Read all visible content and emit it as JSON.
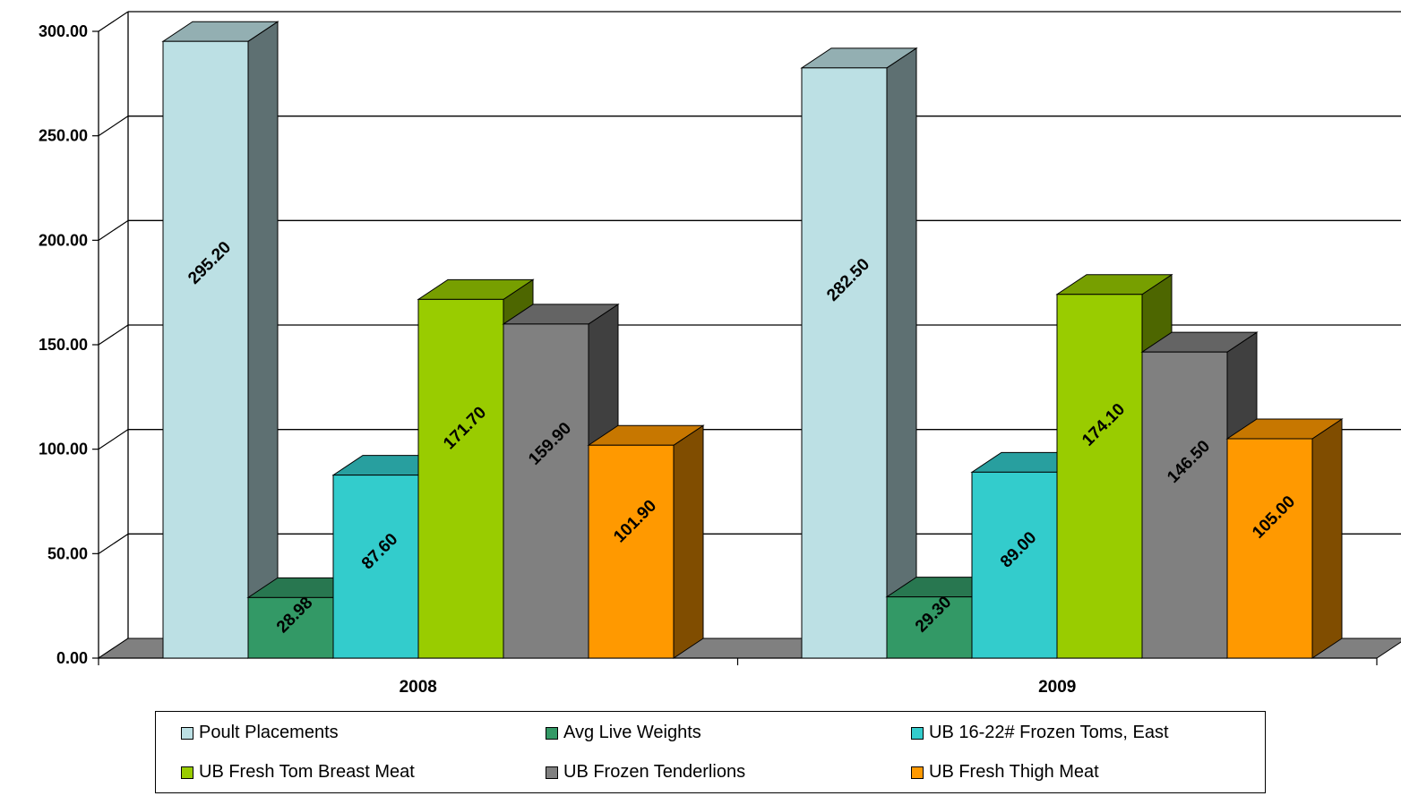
{
  "chart_data": {
    "type": "bar",
    "style": "3d-clustered",
    "title": "",
    "xlabel": "",
    "ylabel": "",
    "categories": [
      "2008",
      "2009"
    ],
    "ylim": [
      0,
      300
    ],
    "yticks": [
      "0.00",
      "50.00",
      "100.00",
      "150.00",
      "200.00",
      "250.00",
      "300.00"
    ],
    "grid": true,
    "legend_position": "bottom",
    "series": [
      {
        "name": "Poult Placements",
        "values": [
          295.2,
          282.5
        ],
        "labels": [
          "295.20",
          "282.50"
        ],
        "color": "#BCE0E4"
      },
      {
        "name": "Avg Live Weights",
        "values": [
          28.98,
          29.3
        ],
        "labels": [
          "28.98",
          "29.30"
        ],
        "color": "#339966"
      },
      {
        "name": "UB 16-22# Frozen Toms, East",
        "values": [
          87.6,
          89.0
        ],
        "labels": [
          "87.60",
          "89.00"
        ],
        "color": "#33CCCC"
      },
      {
        "name": "UB Fresh Tom Breast Meat",
        "values": [
          171.7,
          174.1
        ],
        "labels": [
          "171.70",
          "174.10"
        ],
        "color": "#99CC00"
      },
      {
        "name": "UB Frozen Tenderlions",
        "values": [
          159.9,
          146.5
        ],
        "labels": [
          "159.90",
          "146.50"
        ],
        "color": "#808080"
      },
      {
        "name": "UB Fresh Thigh Meat",
        "values": [
          101.9,
          105.0
        ],
        "labels": [
          "101.90",
          "105.00"
        ],
        "color": "#FF9900"
      }
    ]
  }
}
